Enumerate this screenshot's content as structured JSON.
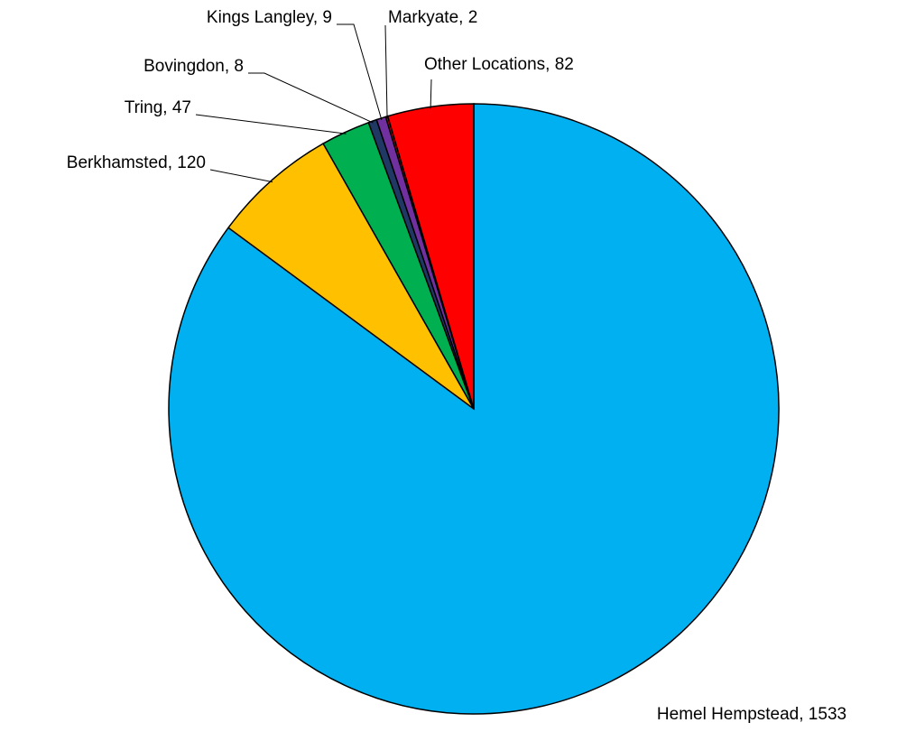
{
  "chart_data": {
    "type": "pie",
    "categories": [
      "Hemel Hempstead",
      "Berkhamsted",
      "Tring",
      "Bovingdon",
      "Kings Langley",
      "Markyate",
      "Other Locations"
    ],
    "values": [
      1533,
      120,
      47,
      8,
      9,
      2,
      82
    ],
    "value_labels": [
      ", 1533",
      ", 120",
      ", 47",
      ", 8",
      ", 9",
      ", 2",
      ", 82"
    ],
    "colors": [
      "#00b0f0",
      "#ffc000",
      "#00b050",
      "#1f3864",
      "#7030a0",
      "#c00000",
      "#ff0000"
    ]
  }
}
